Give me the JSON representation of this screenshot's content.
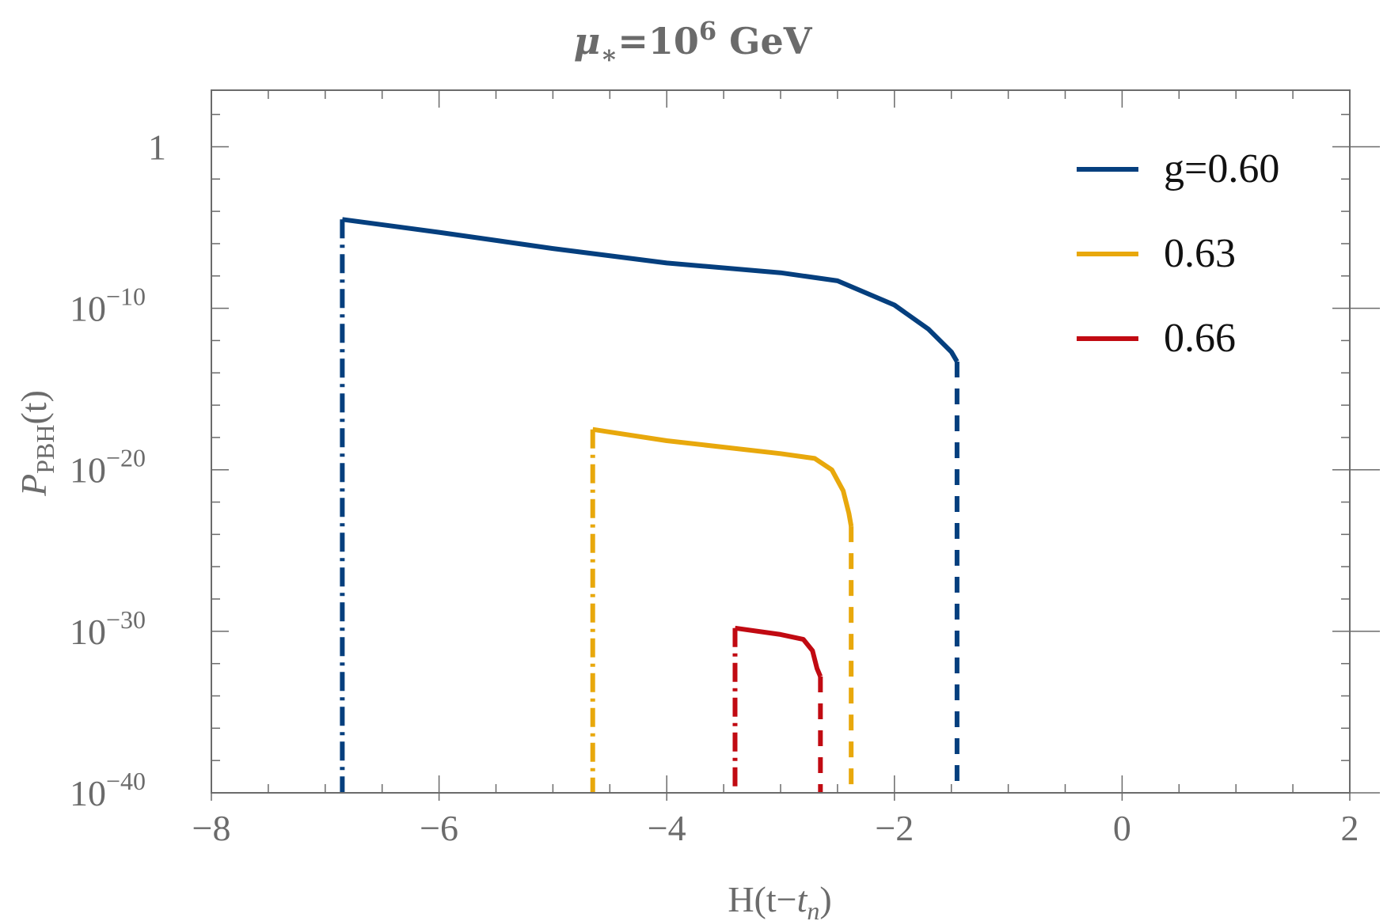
{
  "chart_data": {
    "type": "line",
    "title": {
      "symbol": "μ",
      "sub": "∗",
      "eq": "=10",
      "sup": "6",
      "unit": " GeV"
    },
    "xlabel": {
      "main": "H(t−",
      "var": "t",
      "sub": "n",
      "close": ")"
    },
    "ylabel": {
      "main": "P",
      "sub": "PBH",
      "rest": "(t)"
    },
    "xlim": [
      -8,
      2
    ],
    "ylim_log10": [
      -40,
      3.5
    ],
    "xticks": [
      {
        "value": -8,
        "label": "−8"
      },
      {
        "value": -6,
        "label": "−6"
      },
      {
        "value": -4,
        "label": "−4"
      },
      {
        "value": -2,
        "label": "−2"
      },
      {
        "value": 0,
        "label": "0"
      },
      {
        "value": 2,
        "label": "2"
      }
    ],
    "yticks": [
      {
        "exp": 0,
        "base": "1",
        "sup": ""
      },
      {
        "exp": -10,
        "base": "10",
        "sup": "−10"
      },
      {
        "exp": -20,
        "base": "10",
        "sup": "−20"
      },
      {
        "exp": -30,
        "base": "10",
        "sup": "−30"
      },
      {
        "exp": -40,
        "base": "10",
        "sup": "−40"
      }
    ],
    "legend_position": "top-right",
    "series": [
      {
        "name": "g=0.60",
        "color": "#053f7e",
        "start": -6.85,
        "end": -1.45,
        "log10_y": [
          [
            -6.85,
            -4.5
          ],
          [
            -6.0,
            -5.3
          ],
          [
            -5.0,
            -6.3
          ],
          [
            -4.0,
            -7.2
          ],
          [
            -3.0,
            -7.8
          ],
          [
            -2.5,
            -8.3
          ],
          [
            -2.0,
            -9.8
          ],
          [
            -1.7,
            -11.3
          ],
          [
            -1.5,
            -12.7
          ],
          [
            -1.45,
            -13.3
          ]
        ]
      },
      {
        "name": "0.63",
        "color": "#e8a80c",
        "start": -4.65,
        "end": -2.38,
        "log10_y": [
          [
            -4.65,
            -17.5
          ],
          [
            -4.0,
            -18.2
          ],
          [
            -3.0,
            -19.0
          ],
          [
            -2.7,
            -19.3
          ],
          [
            -2.55,
            -20.0
          ],
          [
            -2.45,
            -21.3
          ],
          [
            -2.4,
            -22.7
          ],
          [
            -2.38,
            -23.5
          ]
        ]
      },
      {
        "name": "0.66",
        "color": "#c10a12",
        "start": -3.4,
        "end": -2.65,
        "log10_y": [
          [
            -3.4,
            -29.8
          ],
          [
            -3.0,
            -30.2
          ],
          [
            -2.8,
            -30.5
          ],
          [
            -2.72,
            -31.2
          ],
          [
            -2.68,
            -32.3
          ],
          [
            -2.65,
            -32.8
          ]
        ]
      }
    ]
  }
}
